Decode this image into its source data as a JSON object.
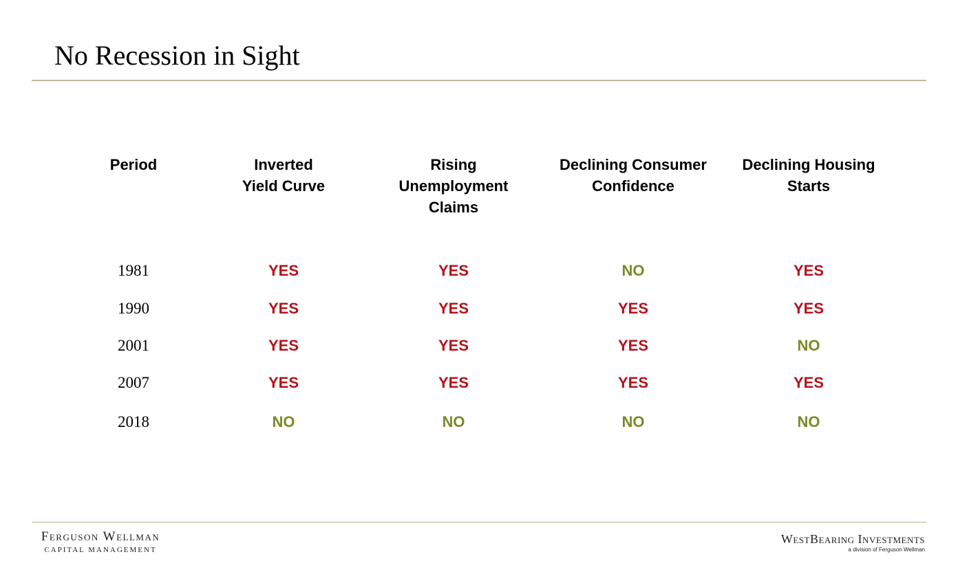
{
  "slide": {
    "title": "No Recession in Sight"
  },
  "table": {
    "headers": {
      "period": [
        "Period"
      ],
      "inverted": [
        "Inverted",
        "Yield Curve"
      ],
      "unemployment": [
        "Rising",
        "Unemployment",
        "Claims"
      ],
      "confidence": [
        "Declining Consumer",
        "Confidence"
      ],
      "housing": [
        "Declining Housing",
        "Starts"
      ]
    },
    "rows": [
      {
        "period": "1981",
        "inverted": "YES",
        "unemployment": "YES",
        "confidence": "NO",
        "housing": "YES"
      },
      {
        "period": "1990",
        "inverted": "YES",
        "unemployment": "YES",
        "confidence": "YES",
        "housing": "YES"
      },
      {
        "period": "2001",
        "inverted": "YES",
        "unemployment": "YES",
        "confidence": "YES",
        "housing": "NO"
      },
      {
        "period": "2007",
        "inverted": "YES",
        "unemployment": "YES",
        "confidence": "YES",
        "housing": "YES"
      },
      {
        "period": "2018",
        "inverted": "NO",
        "unemployment": "NO",
        "confidence": "NO",
        "housing": "NO"
      }
    ]
  },
  "colors": {
    "yes": "#b5121b",
    "no": "#7a8a2a",
    "rule": "#c2b79d"
  },
  "footer": {
    "left_logo_line1": "Ferguson Wellman",
    "left_logo_line2": "Capital Management",
    "right_logo_line1": "WestBearing Investments",
    "right_logo_line2": "a division of Ferguson Wellman"
  }
}
